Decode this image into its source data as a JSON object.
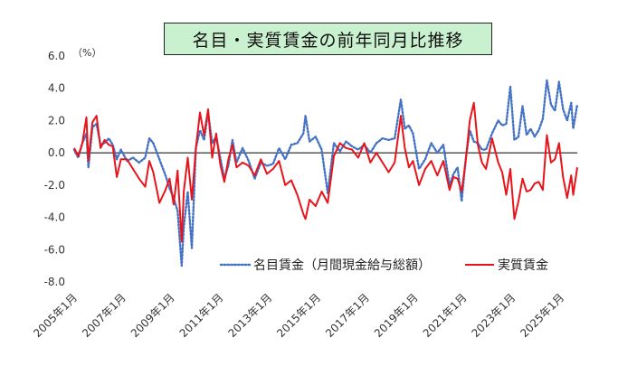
{
  "chart_data": {
    "type": "line",
    "title": "名目・実質賃金の前年同月比推移",
    "unit_label": "（%）",
    "ylim": [
      -8,
      6
    ],
    "yticks": [
      "6.0",
      "4.0",
      "2.0",
      "0.0",
      "-2.0",
      "-4.0",
      "-6.0",
      "-8.0"
    ],
    "ytick_values": [
      6,
      4,
      2,
      0,
      -2,
      -4,
      -6,
      -8
    ],
    "x_start": "2005-01",
    "x_end": "2025-09",
    "xticks": [
      "2005年1月",
      "2007年1月",
      "2009年1月",
      "2011年1月",
      "2013年1月",
      "2015年1月",
      "2017年1月",
      "2019年1月",
      "2021年1月",
      "2023年1月",
      "2025年1月"
    ],
    "xtick_dates": [
      "2005-01",
      "2007-01",
      "2009-01",
      "2011-01",
      "2013-01",
      "2015-01",
      "2017-01",
      "2019-01",
      "2021-01",
      "2023-01",
      "2025-01"
    ],
    "legend_position": "bottom-right",
    "series": [
      {
        "name": "名目賃金（月間現金給与総額）",
        "color": "#4472c4",
        "style": "dotted",
        "points": [
          [
            "2005-01",
            0.2
          ],
          [
            "2005-03",
            -0.3
          ],
          [
            "2005-05",
            0.6
          ],
          [
            "2005-07",
            1.2
          ],
          [
            "2005-08",
            -0.9
          ],
          [
            "2005-10",
            1.6
          ],
          [
            "2005-12",
            1.8
          ],
          [
            "2006-02",
            0.5
          ],
          [
            "2006-04",
            0.6
          ],
          [
            "2006-06",
            0.9
          ],
          [
            "2006-08",
            0.5
          ],
          [
            "2006-10",
            -0.4
          ],
          [
            "2006-12",
            0.2
          ],
          [
            "2007-03",
            -0.5
          ],
          [
            "2007-06",
            -0.3
          ],
          [
            "2007-09",
            -0.6
          ],
          [
            "2007-12",
            -0.3
          ],
          [
            "2008-02",
            0.9
          ],
          [
            "2008-04",
            0.6
          ],
          [
            "2008-07",
            -0.4
          ],
          [
            "2008-10",
            -1.4
          ],
          [
            "2008-12",
            -2.2
          ],
          [
            "2009-02",
            -2.8
          ],
          [
            "2009-04",
            -3.6
          ],
          [
            "2009-06",
            -7.0
          ],
          [
            "2009-07",
            -4.6
          ],
          [
            "2009-09",
            -2.4
          ],
          [
            "2009-11",
            -5.9
          ],
          [
            "2010-01",
            0.3
          ],
          [
            "2010-03",
            1.4
          ],
          [
            "2010-05",
            0.8
          ],
          [
            "2010-07",
            2.5
          ],
          [
            "2010-09",
            0.6
          ],
          [
            "2010-11",
            1.0
          ],
          [
            "2011-01",
            -0.3
          ],
          [
            "2011-03",
            -1.6
          ],
          [
            "2011-05",
            -0.8
          ],
          [
            "2011-07",
            0.8
          ],
          [
            "2011-09",
            -0.6
          ],
          [
            "2011-12",
            0.3
          ],
          [
            "2012-03",
            -0.5
          ],
          [
            "2012-06",
            -1.6
          ],
          [
            "2012-09",
            -0.6
          ],
          [
            "2012-12",
            -0.8
          ],
          [
            "2013-03",
            -0.7
          ],
          [
            "2013-06",
            0.3
          ],
          [
            "2013-09",
            -0.4
          ],
          [
            "2013-12",
            0.5
          ],
          [
            "2014-03",
            0.6
          ],
          [
            "2014-06",
            1.2
          ],
          [
            "2014-07",
            2.3
          ],
          [
            "2014-09",
            0.7
          ],
          [
            "2014-12",
            1.0
          ],
          [
            "2015-03",
            0.2
          ],
          [
            "2015-06",
            -2.5
          ],
          [
            "2015-09",
            0.6
          ],
          [
            "2015-12",
            0.1
          ],
          [
            "2016-03",
            0.7
          ],
          [
            "2016-06",
            0.4
          ],
          [
            "2016-09",
            0.2
          ],
          [
            "2016-12",
            0.5
          ],
          [
            "2017-03",
            0.0
          ],
          [
            "2017-06",
            0.6
          ],
          [
            "2017-09",
            0.9
          ],
          [
            "2017-12",
            0.8
          ],
          [
            "2018-03",
            0.9
          ],
          [
            "2018-06",
            3.3
          ],
          [
            "2018-08",
            1.5
          ],
          [
            "2018-10",
            1.7
          ],
          [
            "2018-12",
            1.2
          ],
          [
            "2019-03",
            -1.0
          ],
          [
            "2019-06",
            -0.4
          ],
          [
            "2019-09",
            0.6
          ],
          [
            "2019-12",
            0.0
          ],
          [
            "2020-03",
            0.5
          ],
          [
            "2020-06",
            -2.0
          ],
          [
            "2020-08",
            -1.3
          ],
          [
            "2020-10",
            -0.9
          ],
          [
            "2020-12",
            -3.0
          ],
          [
            "2021-02",
            -0.4
          ],
          [
            "2021-04",
            1.4
          ],
          [
            "2021-06",
            0.7
          ],
          [
            "2021-08",
            0.6
          ],
          [
            "2021-10",
            0.2
          ],
          [
            "2021-12",
            0.2
          ],
          [
            "2022-03",
            1.2
          ],
          [
            "2022-06",
            2.0
          ],
          [
            "2022-08",
            1.7
          ],
          [
            "2022-10",
            1.8
          ],
          [
            "2022-12",
            4.1
          ],
          [
            "2023-02",
            0.8
          ],
          [
            "2023-04",
            1.0
          ],
          [
            "2023-06",
            2.9
          ],
          [
            "2023-08",
            1.1
          ],
          [
            "2023-10",
            1.5
          ],
          [
            "2023-12",
            1.0
          ],
          [
            "2024-02",
            1.4
          ],
          [
            "2024-04",
            2.1
          ],
          [
            "2024-06",
            4.5
          ],
          [
            "2024-08",
            3.0
          ],
          [
            "2024-10",
            2.6
          ],
          [
            "2024-12",
            4.4
          ],
          [
            "2025-02",
            2.7
          ],
          [
            "2025-04",
            2.0
          ],
          [
            "2025-06",
            3.1
          ],
          [
            "2025-07",
            1.5
          ],
          [
            "2025-09",
            3.0
          ]
        ]
      },
      {
        "name": "実質賃金",
        "color": "#e8141b",
        "style": "solid",
        "points": [
          [
            "2005-01",
            0.3
          ],
          [
            "2005-03",
            -0.2
          ],
          [
            "2005-05",
            0.6
          ],
          [
            "2005-07",
            2.2
          ],
          [
            "2005-08",
            -0.5
          ],
          [
            "2005-10",
            1.9
          ],
          [
            "2005-12",
            2.3
          ],
          [
            "2006-02",
            0.3
          ],
          [
            "2006-04",
            0.8
          ],
          [
            "2006-06",
            0.5
          ],
          [
            "2006-08",
            0.4
          ],
          [
            "2006-10",
            -1.5
          ],
          [
            "2006-12",
            -0.4
          ],
          [
            "2007-03",
            -0.4
          ],
          [
            "2007-06",
            -1.0
          ],
          [
            "2007-09",
            -1.6
          ],
          [
            "2007-12",
            -2.1
          ],
          [
            "2008-02",
            -0.5
          ],
          [
            "2008-04",
            -1.2
          ],
          [
            "2008-07",
            -3.1
          ],
          [
            "2008-10",
            -2.3
          ],
          [
            "2008-12",
            -1.6
          ],
          [
            "2009-02",
            -3.2
          ],
          [
            "2009-04",
            -1.1
          ],
          [
            "2009-06",
            -5.5
          ],
          [
            "2009-07",
            -2.4
          ],
          [
            "2009-09",
            -0.3
          ],
          [
            "2009-11",
            -2.9
          ],
          [
            "2010-01",
            0.3
          ],
          [
            "2010-03",
            2.5
          ],
          [
            "2010-05",
            1.1
          ],
          [
            "2010-07",
            2.7
          ],
          [
            "2010-09",
            -0.3
          ],
          [
            "2010-11",
            1.2
          ],
          [
            "2011-01",
            -0.7
          ],
          [
            "2011-03",
            -1.8
          ],
          [
            "2011-05",
            -0.4
          ],
          [
            "2011-07",
            0.5
          ],
          [
            "2011-09",
            -0.9
          ],
          [
            "2011-12",
            -0.6
          ],
          [
            "2012-03",
            -0.8
          ],
          [
            "2012-06",
            -1.4
          ],
          [
            "2012-09",
            -0.4
          ],
          [
            "2012-12",
            -1.3
          ],
          [
            "2013-03",
            -1.0
          ],
          [
            "2013-06",
            -0.5
          ],
          [
            "2013-09",
            -2.0
          ],
          [
            "2013-12",
            -1.7
          ],
          [
            "2014-03",
            -2.6
          ],
          [
            "2014-06",
            -3.8
          ],
          [
            "2014-07",
            -4.1
          ],
          [
            "2014-09",
            -2.9
          ],
          [
            "2014-12",
            -3.3
          ],
          [
            "2015-03",
            -2.4
          ],
          [
            "2015-06",
            -3.1
          ],
          [
            "2015-09",
            -0.2
          ],
          [
            "2015-12",
            0.6
          ],
          [
            "2016-03",
            0.3
          ],
          [
            "2016-06",
            0.2
          ],
          [
            "2016-09",
            -0.3
          ],
          [
            "2016-12",
            0.6
          ],
          [
            "2017-03",
            -0.6
          ],
          [
            "2017-06",
            0.0
          ],
          [
            "2017-09",
            -0.6
          ],
          [
            "2017-12",
            -1.2
          ],
          [
            "2018-03",
            -0.6
          ],
          [
            "2018-06",
            2.3
          ],
          [
            "2018-08",
            0.3
          ],
          [
            "2018-10",
            -0.9
          ],
          [
            "2018-12",
            -0.5
          ],
          [
            "2019-03",
            -2.0
          ],
          [
            "2019-06",
            -1.0
          ],
          [
            "2019-09",
            -0.5
          ],
          [
            "2019-12",
            -1.4
          ],
          [
            "2020-03",
            -0.5
          ],
          [
            "2020-06",
            -2.3
          ],
          [
            "2020-08",
            -1.5
          ],
          [
            "2020-10",
            -1.6
          ],
          [
            "2020-12",
            -2.4
          ],
          [
            "2021-02",
            -0.5
          ],
          [
            "2021-04",
            2.0
          ],
          [
            "2021-06",
            3.1
          ],
          [
            "2021-08",
            0.5
          ],
          [
            "2021-10",
            -0.6
          ],
          [
            "2021-12",
            -1.0
          ],
          [
            "2022-03",
            0.9
          ],
          [
            "2022-06",
            -0.6
          ],
          [
            "2022-08",
            -1.2
          ],
          [
            "2022-10",
            -2.6
          ],
          [
            "2022-12",
            -1.0
          ],
          [
            "2023-02",
            -4.1
          ],
          [
            "2023-04",
            -3.0
          ],
          [
            "2023-06",
            -1.6
          ],
          [
            "2023-08",
            -2.4
          ],
          [
            "2023-10",
            -2.3
          ],
          [
            "2023-12",
            -1.9
          ],
          [
            "2024-02",
            -1.8
          ],
          [
            "2024-04",
            -2.3
          ],
          [
            "2024-06",
            1.1
          ],
          [
            "2024-08",
            -0.6
          ],
          [
            "2024-10",
            -0.4
          ],
          [
            "2024-12",
            0.6
          ],
          [
            "2025-02",
            -1.5
          ],
          [
            "2025-04",
            -2.8
          ],
          [
            "2025-06",
            -1.4
          ],
          [
            "2025-07",
            -2.6
          ],
          [
            "2025-09",
            -0.9
          ]
        ]
      }
    ]
  }
}
